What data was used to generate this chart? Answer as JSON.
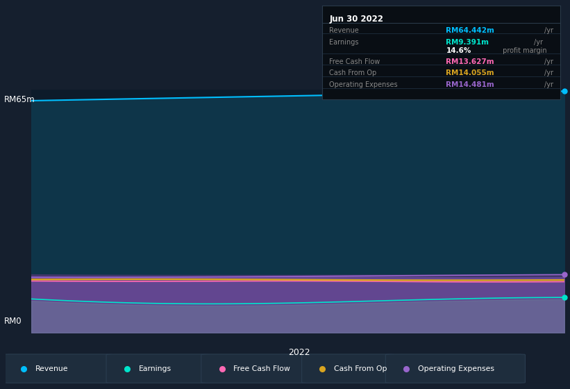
{
  "bg_color": "#151f2e",
  "chart_bg_color": "#0d1b2a",
  "plot_bg_color": "#0e3045",
  "title": "Jun 30 2022",
  "ylabel_top": "RM65m",
  "ylabel_bottom": "RM0",
  "xlabel": "2022",
  "ylim": [
    0,
    65
  ],
  "revenue_color": "#00bfff",
  "revenue_fill": "#0e3549",
  "earnings_color": "#00e5cc",
  "fcf_color": "#ff69b4",
  "cfo_color": "#daa520",
  "opex_color": "#9966cc",
  "opex_fill": "#5a4080",
  "fcf_fill": "#7b5ab5",
  "earnings_fill": "#7a8fa8",
  "grid_color": "#2a4050",
  "grid_alpha": 0.5,
  "tooltip": {
    "title": "Jun 30 2022",
    "rows": [
      {
        "label": "Revenue",
        "value": "RM64.442m",
        "unit": "/yr",
        "value_color": "#00bfff"
      },
      {
        "label": "Earnings",
        "value": "RM9.391m",
        "unit": "/yr",
        "value_color": "#00e5cc"
      },
      {
        "label": "",
        "value": "14.6%",
        "unit": " profit margin",
        "value_color": "#ffffff"
      },
      {
        "label": "Free Cash Flow",
        "value": "RM13.627m",
        "unit": "/yr",
        "value_color": "#ff69b4"
      },
      {
        "label": "Cash From Op",
        "value": "RM14.055m",
        "unit": "/yr",
        "value_color": "#daa520"
      },
      {
        "label": "Operating Expenses",
        "value": "RM14.481m",
        "unit": "/yr",
        "value_color": "#9966cc"
      }
    ]
  },
  "legend": [
    {
      "label": "Revenue",
      "color": "#00bfff"
    },
    {
      "label": "Earnings",
      "color": "#00e5cc"
    },
    {
      "label": "Free Cash Flow",
      "color": "#ff69b4"
    },
    {
      "label": "Cash From Op",
      "color": "#daa520"
    },
    {
      "label": "Operating Expenses",
      "color": "#9966cc"
    }
  ]
}
